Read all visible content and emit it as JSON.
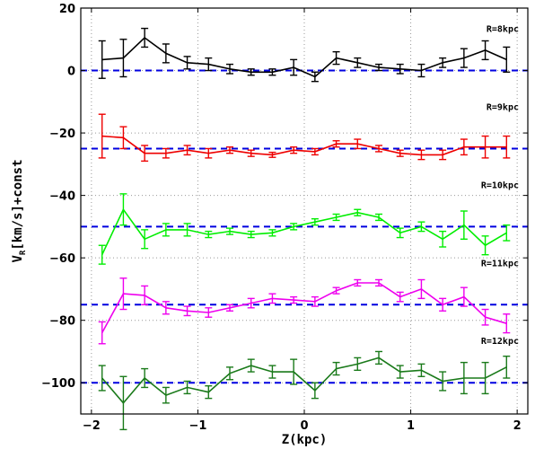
{
  "chart_data": {
    "type": "line",
    "xlabel": "Z(kpc)",
    "ylabel_main": "V",
    "ylabel_sub": "R",
    "ylabel_rest": "[km/s]+const",
    "xlim": [
      -2.1,
      2.1
    ],
    "ylim": [
      -110,
      20
    ],
    "xticks": [
      -2,
      -1,
      0,
      1,
      2
    ],
    "yticks": [
      20,
      0,
      -20,
      -40,
      -60,
      -80,
      -100
    ],
    "grid": true,
    "reference_line_style": "dashed",
    "reference_line_color": "#0000e0",
    "x": [
      -1.9,
      -1.7,
      -1.5,
      -1.3,
      -1.1,
      -0.9,
      -0.7,
      -0.5,
      -0.3,
      -0.1,
      0.1,
      0.3,
      0.5,
      0.7,
      0.9,
      1.1,
      1.3,
      1.5,
      1.7,
      1.9
    ],
    "series": [
      {
        "name": "R=8kpc",
        "color": "#000000",
        "baseline": 0,
        "values": [
          3.5,
          4,
          10.5,
          5.5,
          2.5,
          2,
          0.5,
          -0.5,
          -0.5,
          1,
          -2,
          4,
          2.5,
          1,
          0.5,
          0,
          2.5,
          4,
          6.5,
          3.5
        ],
        "errors": [
          6,
          6,
          3,
          3,
          2,
          2,
          1.5,
          1,
          1,
          2.5,
          1.5,
          2,
          1.5,
          1,
          1.5,
          2,
          1.5,
          3,
          3,
          4
        ]
      },
      {
        "name": "R=9kpc",
        "color": "#ee0000",
        "baseline": -25,
        "values": [
          -21,
          -21.5,
          -26.5,
          -26.5,
          -25.5,
          -26.5,
          -25.5,
          -26.5,
          -27,
          -25.5,
          -26,
          -23.5,
          -23.5,
          -25,
          -26.5,
          -27,
          -27,
          -24.5,
          -24.5,
          -24.5
        ],
        "errors": [
          7,
          3.5,
          2.5,
          1.5,
          1.5,
          1.5,
          1,
          1,
          0.8,
          1,
          1,
          1,
          1.5,
          1,
          1,
          1.5,
          1.5,
          2.5,
          3.5,
          3.5
        ]
      },
      {
        "name": "R=10kpc",
        "color": "#00ee00",
        "baseline": -50,
        "values": [
          -59,
          -44.5,
          -54,
          -51,
          -51,
          -52.5,
          -51.5,
          -52.5,
          -52,
          -50,
          -48.5,
          -47,
          -45.5,
          -47,
          -52,
          -50,
          -54,
          -49.5,
          -56,
          -52
        ],
        "errors": [
          3,
          5,
          3,
          2,
          2,
          1,
          1,
          1,
          1,
          1,
          1,
          1,
          1,
          1,
          1.5,
          1.5,
          2.5,
          4.5,
          3,
          2.5
        ]
      },
      {
        "name": "R=11kpc",
        "color": "#ee00ee",
        "baseline": -75,
        "values": [
          -84,
          -71.5,
          -72,
          -76,
          -77,
          -77.5,
          -76,
          -74.5,
          -73,
          -73.5,
          -74,
          -70.5,
          -68,
          -68,
          -72.5,
          -70,
          -75,
          -72.5,
          -79,
          -81
        ],
        "errors": [
          3.5,
          5,
          3,
          2,
          1.5,
          1.5,
          1,
          1.5,
          1.5,
          1,
          1.5,
          1,
          1,
          1,
          1.5,
          3,
          2,
          3,
          2.5,
          3
        ]
      },
      {
        "name": "R=12kpc",
        "color": "#1a7a1a",
        "baseline": -100,
        "values": [
          -98.5,
          -106.5,
          -98.5,
          -104,
          -101.5,
          -103,
          -97,
          -94.5,
          -96.5,
          -96.5,
          -102.5,
          -95.5,
          -94,
          -92,
          -96.5,
          -96,
          -99.5,
          -98.5,
          -98.5,
          -95
        ],
        "errors": [
          4,
          8.5,
          3,
          2.5,
          2,
          2,
          2,
          2,
          2,
          4,
          2.5,
          2,
          2,
          2,
          2,
          2,
          3,
          5,
          5,
          3.5
        ]
      }
    ]
  }
}
